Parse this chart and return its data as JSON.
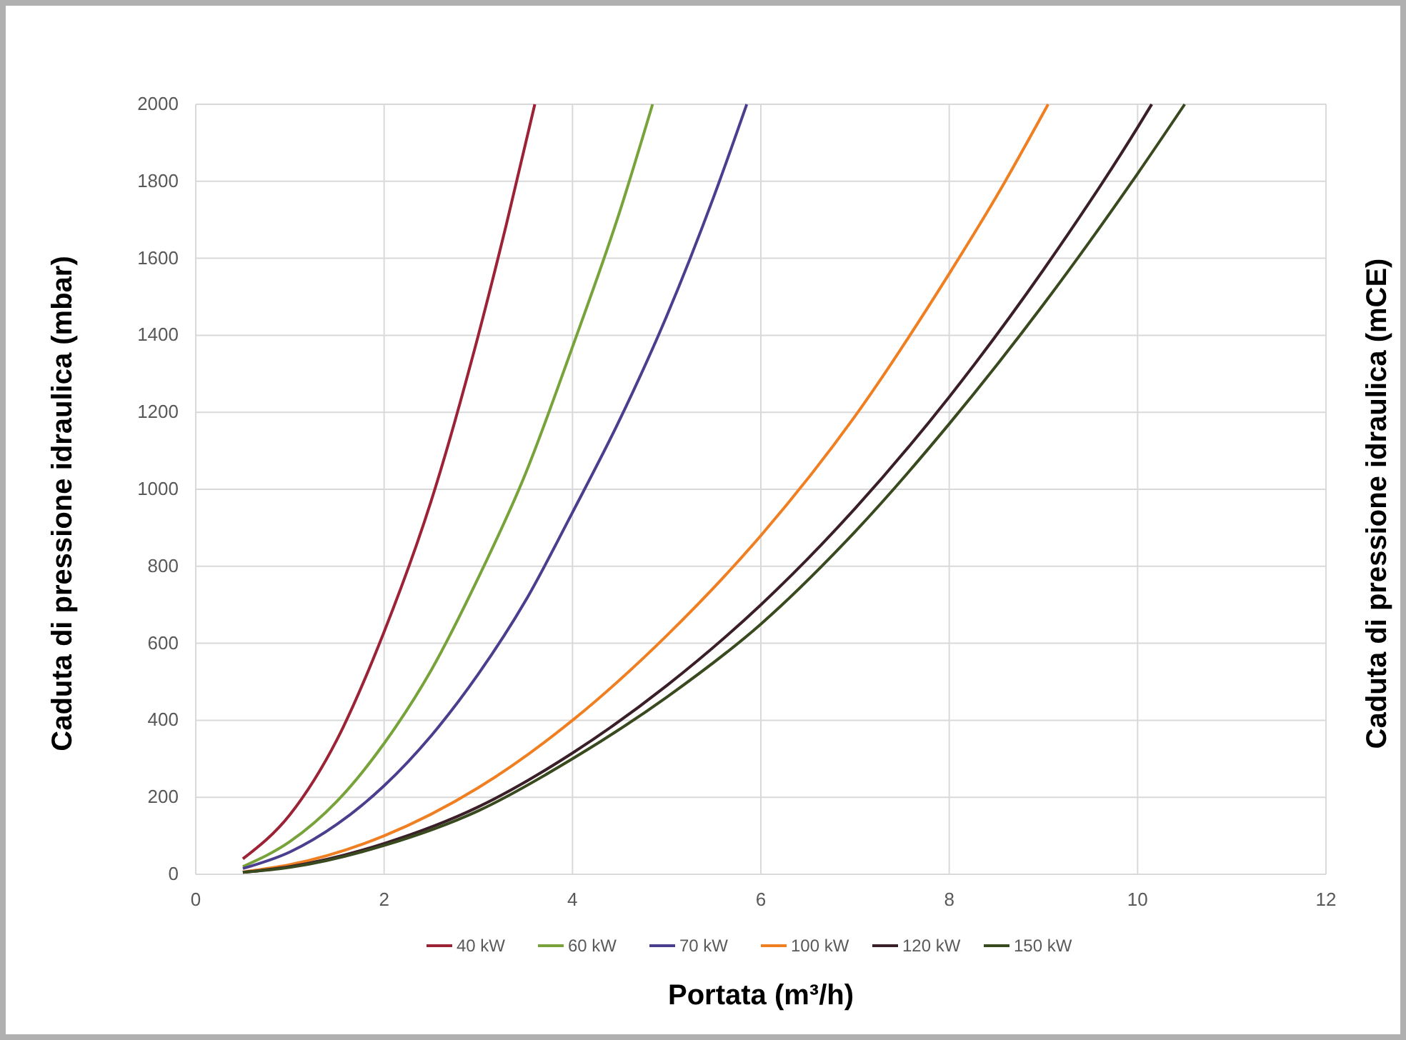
{
  "chart_data": {
    "type": "line",
    "xlabel": "Portata (m³/h)",
    "ylabel": "Caduta di pressione idraulica (mbar)",
    "y2label": "Caduta di pressione idraulica (mCE)",
    "xlim": [
      0,
      12
    ],
    "xticks": [
      0,
      2,
      4,
      6,
      8,
      10,
      12
    ],
    "ylim": [
      0,
      2000
    ],
    "yticks": [
      0,
      200,
      400,
      600,
      800,
      1000,
      1200,
      1400,
      1600,
      1800,
      2000
    ],
    "grid": true,
    "legend": "bottom",
    "line_style": "solid",
    "series": [
      {
        "name": "40 kW",
        "color": "#9b2335",
        "x": [
          0.5,
          1,
          1.5,
          2,
          2.5,
          3,
          3.3,
          3.6
        ],
        "values": [
          40,
          155,
          350,
          630,
          970,
          1400,
          1690,
          2000
        ]
      },
      {
        "name": "60 kW",
        "color": "#77a33a",
        "x": [
          0.5,
          1,
          1.5,
          2,
          2.5,
          3,
          3.5,
          4,
          4.5,
          4.85
        ],
        "values": [
          20,
          85,
          190,
          340,
          530,
          770,
          1040,
          1370,
          1720,
          2000
        ]
      },
      {
        "name": "70 kW",
        "color": "#4a3f8f",
        "x": [
          0.5,
          1,
          1.5,
          2,
          2.5,
          3,
          3.5,
          4,
          4.5,
          5,
          5.5,
          5.85
        ],
        "values": [
          15,
          58,
          130,
          230,
          360,
          520,
          710,
          940,
          1180,
          1450,
          1760,
          2000
        ]
      },
      {
        "name": "100 kW",
        "color": "#f07f22",
        "x": [
          0.5,
          1,
          2,
          3,
          4,
          5,
          6,
          7,
          8,
          8.5,
          9.05
        ],
        "values": [
          6,
          25,
          100,
          225,
          400,
          620,
          880,
          1190,
          1560,
          1760,
          2000
        ]
      },
      {
        "name": "120 kW",
        "color": "#3a1f28",
        "x": [
          0.5,
          1,
          2,
          3,
          4,
          5,
          6,
          7,
          8,
          9,
          10,
          10.15
        ],
        "values": [
          5,
          20,
          80,
          175,
          315,
          490,
          700,
          950,
          1240,
          1570,
          1940,
          2000
        ]
      },
      {
        "name": "150 kW",
        "color": "#3a4a1f",
        "x": [
          0.5,
          1,
          2,
          3,
          4,
          5,
          6,
          7,
          8,
          9,
          10,
          10.5
        ],
        "values": [
          5,
          18,
          75,
          165,
          300,
          460,
          650,
          890,
          1170,
          1480,
          1820,
          2000
        ]
      }
    ]
  }
}
